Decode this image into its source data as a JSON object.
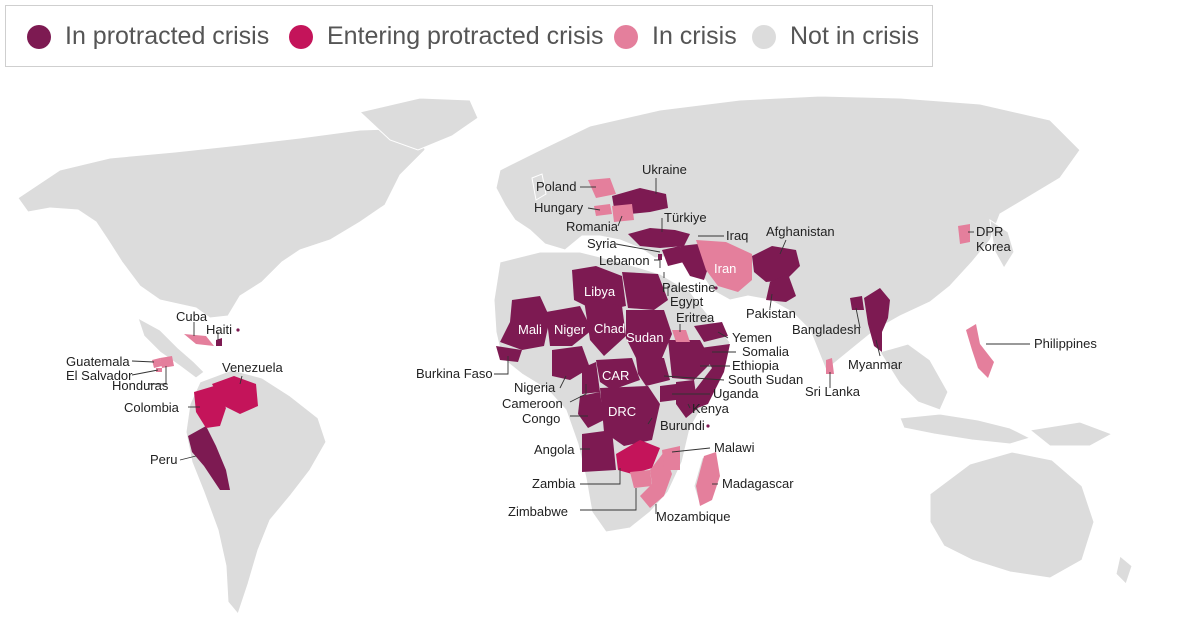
{
  "legend": {
    "items": [
      {
        "label": "In protracted crisis",
        "color": "#7d1a52"
      },
      {
        "label": "Entering protracted crisis",
        "color": "#c4145a"
      },
      {
        "label": "In crisis",
        "color": "#e47f9c"
      },
      {
        "label": "Not in crisis",
        "color": "#dcdcdc"
      }
    ]
  },
  "map": {
    "countries": {
      "ukraine": {
        "label": "Ukraine",
        "status": "In protracted crisis"
      },
      "poland": {
        "label": "Poland",
        "status": "In crisis"
      },
      "hungary": {
        "label": "Hungary",
        "status": "In crisis"
      },
      "romania": {
        "label": "Romania",
        "status": "In crisis"
      },
      "turkiye": {
        "label": "Türkiye",
        "status": "In protracted crisis"
      },
      "iraq": {
        "label": "Iraq",
        "status": "In protracted crisis"
      },
      "syria": {
        "label": "Syria",
        "status": "In protracted crisis"
      },
      "lebanon": {
        "label": "Lebanon",
        "status": "In protracted crisis"
      },
      "palestine": {
        "label": "Palestine",
        "status": "In protracted crisis"
      },
      "egypt": {
        "label": "Egypt",
        "status": "In protracted crisis"
      },
      "iran": {
        "label": "Iran",
        "status": "In crisis"
      },
      "afghanistan": {
        "label": "Afghanistan",
        "status": "In protracted crisis"
      },
      "pakistan": {
        "label": "Pakistan",
        "status": "In protracted crisis"
      },
      "bangladesh": {
        "label": "Bangladesh",
        "status": "In protracted crisis"
      },
      "myanmar": {
        "label": "Myanmar",
        "status": "In protracted crisis"
      },
      "sri_lanka": {
        "label": "Sri Lanka",
        "status": "In crisis"
      },
      "dpr_korea": {
        "label": "DPR\nKorea",
        "status": "In crisis"
      },
      "philippines": {
        "label": "Philippines",
        "status": "In crisis"
      },
      "libya": {
        "label": "Libya",
        "status": "In protracted crisis"
      },
      "mali": {
        "label": "Mali",
        "status": "In protracted crisis"
      },
      "niger": {
        "label": "Niger",
        "status": "In protracted crisis"
      },
      "chad": {
        "label": "Chad",
        "status": "In protracted crisis"
      },
      "sudan": {
        "label": "Sudan",
        "status": "In protracted crisis"
      },
      "eritrea": {
        "label": "Eritrea",
        "status": "In crisis"
      },
      "yemen": {
        "label": "Yemen",
        "status": "In protracted crisis"
      },
      "somalia": {
        "label": "Somalia",
        "status": "In protracted crisis"
      },
      "ethiopia": {
        "label": "Ethiopia",
        "status": "In protracted crisis"
      },
      "south_sudan": {
        "label": "South Sudan",
        "status": "In protracted crisis"
      },
      "uganda": {
        "label": "Uganda",
        "status": "In protracted crisis"
      },
      "kenya": {
        "label": "Kenya",
        "status": "In protracted crisis"
      },
      "burundi": {
        "label": "Burundi",
        "status": "In protracted crisis"
      },
      "car": {
        "label": "CAR",
        "status": "In protracted crisis"
      },
      "drc": {
        "label": "DRC",
        "status": "In protracted crisis"
      },
      "burkina_faso": {
        "label": "Burkina Faso",
        "status": "In protracted crisis"
      },
      "nigeria": {
        "label": "Nigeria",
        "status": "In protracted crisis"
      },
      "cameroon": {
        "label": "Cameroon",
        "status": "In protracted crisis"
      },
      "congo": {
        "label": "Congo",
        "status": "In protracted crisis"
      },
      "angola": {
        "label": "Angola",
        "status": "In protracted crisis"
      },
      "zambia": {
        "label": "Zambia",
        "status": "Entering protracted crisis"
      },
      "zimbabwe": {
        "label": "Zimbabwe",
        "status": "In crisis"
      },
      "mozambique": {
        "label": "Mozambique",
        "status": "In crisis"
      },
      "malawi": {
        "label": "Malawi",
        "status": "In crisis"
      },
      "madagascar": {
        "label": "Madagascar",
        "status": "In crisis"
      },
      "cuba": {
        "label": "Cuba",
        "status": "In crisis"
      },
      "haiti": {
        "label": "Haiti",
        "status": "In protracted crisis"
      },
      "guatemala": {
        "label": "Guatemala",
        "status": "In crisis"
      },
      "el_salvador": {
        "label": "El Salvador",
        "status": "In crisis"
      },
      "honduras": {
        "label": "Honduras",
        "status": "In crisis"
      },
      "venezuela": {
        "label": "Venezuela",
        "status": "Entering protracted crisis"
      },
      "colombia": {
        "label": "Colombia",
        "status": "Entering protracted crisis"
      },
      "peru": {
        "label": "Peru",
        "status": "In protracted crisis"
      }
    }
  }
}
